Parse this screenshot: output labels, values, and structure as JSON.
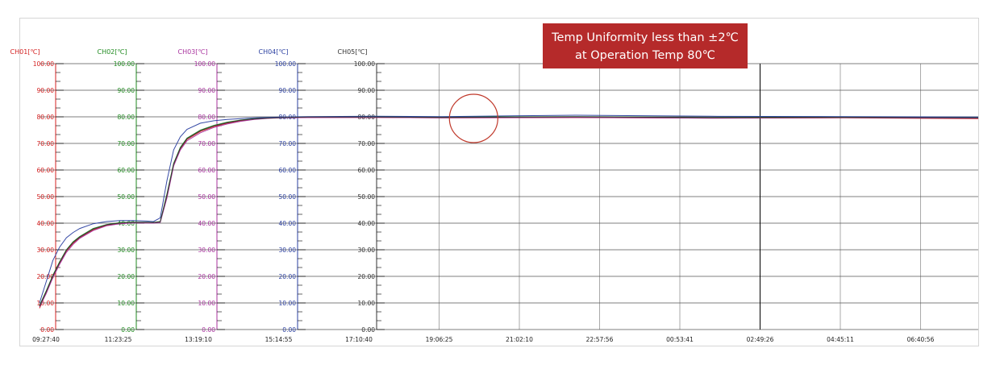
{
  "callout": {
    "line1": "Temp Uniformity less than ±2℃",
    "line2": "at Operation Temp 80℃",
    "bg_color": "#b52a2a",
    "text_color": "#ffffff"
  },
  "highlight_marker": {
    "shape": "circle",
    "color": "#c0392b",
    "at_time": "19:56:00",
    "at_value": 80
  },
  "chart_data": {
    "type": "line",
    "title": "",
    "x_ticks": [
      "09:27:40",
      "11:23:25",
      "13:19:10",
      "15:14:55",
      "17:10:40",
      "19:06:25",
      "21:02:10",
      "22:57:56",
      "00:53:41",
      "02:49:26",
      "04:45:11",
      "06:40:56"
    ],
    "ylim": [
      0,
      100
    ],
    "y_ticks": [
      "0.00",
      "10.00",
      "20.00",
      "30.00",
      "40.00",
      "50.00",
      "60.00",
      "70.00",
      "80.00",
      "90.00",
      "100.00"
    ],
    "grid": true,
    "channels": [
      {
        "name": "CH01[℃]",
        "color": "#d42020"
      },
      {
        "name": "CH02[℃]",
        "color": "#1f8a1f"
      },
      {
        "name": "CH03[℃]",
        "color": "#a8329e"
      },
      {
        "name": "CH04[℃]",
        "color": "#2a3fa0"
      },
      {
        "name": "CH05[℃]",
        "color": "#333333"
      }
    ],
    "series": [
      {
        "name": "CH01[℃]",
        "color": "#d42020",
        "x_min": [
          0,
          10,
          20,
          30,
          40,
          50,
          60,
          80,
          100,
          120,
          140,
          160,
          170,
          180,
          190,
          200,
          210,
          220,
          240,
          260,
          280,
          300,
          320,
          340,
          360,
          400,
          500,
          600,
          800,
          1000,
          1200,
          1400
        ],
        "values": [
          8,
          14,
          20,
          25,
          29.5,
          32.5,
          34.5,
          37.5,
          39.2,
          40,
          40.3,
          40.3,
          40.2,
          40.5,
          50,
          62,
          68,
          71.5,
          74.5,
          76.3,
          77.6,
          78.5,
          79.1,
          79.5,
          79.7,
          79.8,
          79.8,
          79.6,
          79.7,
          79.5,
          79.6,
          79.3
        ]
      },
      {
        "name": "CH02[℃]",
        "color": "#1f8a1f",
        "x_min": [
          0,
          10,
          20,
          30,
          40,
          50,
          60,
          80,
          100,
          120,
          140,
          160,
          170,
          180,
          190,
          200,
          210,
          220,
          240,
          260,
          280,
          300,
          320,
          340,
          360,
          400,
          500,
          600,
          800,
          1000,
          1200,
          1400
        ],
        "values": [
          9,
          14.5,
          20.5,
          25.5,
          30,
          33,
          35,
          38,
          39.5,
          40.2,
          40.4,
          40.4,
          40.3,
          40.6,
          51,
          62.5,
          68.5,
          72,
          75,
          76.8,
          78,
          78.8,
          79.3,
          79.6,
          79.8,
          80,
          80,
          79.9,
          80.1,
          79.8,
          79.9,
          79.7
        ]
      },
      {
        "name": "CH03[℃]",
        "color": "#a8329e",
        "x_min": [
          0,
          10,
          20,
          30,
          40,
          50,
          60,
          80,
          100,
          120,
          140,
          160,
          170,
          180,
          190,
          200,
          210,
          220,
          240,
          260,
          280,
          300,
          320,
          340,
          360,
          400,
          500,
          600,
          800,
          1000,
          1200,
          1400
        ],
        "values": [
          8.5,
          13.5,
          19.5,
          24.5,
          29,
          32,
          34.3,
          37.2,
          39,
          39.8,
          40.1,
          40.1,
          40,
          40.3,
          49.5,
          61.5,
          67.5,
          71,
          74,
          76,
          77.3,
          78.3,
          79,
          79.4,
          79.6,
          79.7,
          79.8,
          79.6,
          79.8,
          79.5,
          79.7,
          79.5
        ]
      },
      {
        "name": "CH04[℃]",
        "color": "#2a3fa0",
        "x_min": [
          0,
          10,
          20,
          30,
          40,
          50,
          60,
          80,
          100,
          120,
          140,
          160,
          170,
          180,
          190,
          200,
          210,
          220,
          240,
          260,
          280,
          300,
          320,
          340,
          360,
          400,
          500,
          600,
          800,
          1000,
          1200,
          1400
        ],
        "values": [
          10,
          18,
          26,
          31,
          34.5,
          36.5,
          38,
          39.8,
          40.6,
          41,
          41,
          40.8,
          40.6,
          42,
          56,
          67.5,
          72.5,
          75.3,
          77.6,
          78.5,
          79,
          79.3,
          79.6,
          79.8,
          79.9,
          80.1,
          80.2,
          80.1,
          80.6,
          80.2,
          80.1,
          79.9
        ]
      },
      {
        "name": "CH05[℃]",
        "color": "#333333",
        "x_min": [
          0,
          10,
          20,
          30,
          40,
          50,
          60,
          80,
          100,
          120,
          140,
          160,
          170,
          180,
          190,
          200,
          210,
          220,
          240,
          260,
          280,
          300,
          320,
          340,
          360,
          400,
          500,
          600,
          800,
          1000,
          1200,
          1400
        ],
        "values": [
          8.8,
          14.2,
          20.2,
          25.2,
          29.8,
          32.8,
          34.8,
          37.8,
          39.4,
          40.1,
          40.3,
          40.3,
          40.2,
          40.5,
          50.5,
          62.2,
          68.2,
          71.8,
          74.8,
          76.6,
          77.8,
          78.7,
          79.2,
          79.5,
          79.7,
          79.9,
          79.9,
          79.8,
          80,
          79.7,
          79.8,
          79.6
        ]
      }
    ]
  }
}
